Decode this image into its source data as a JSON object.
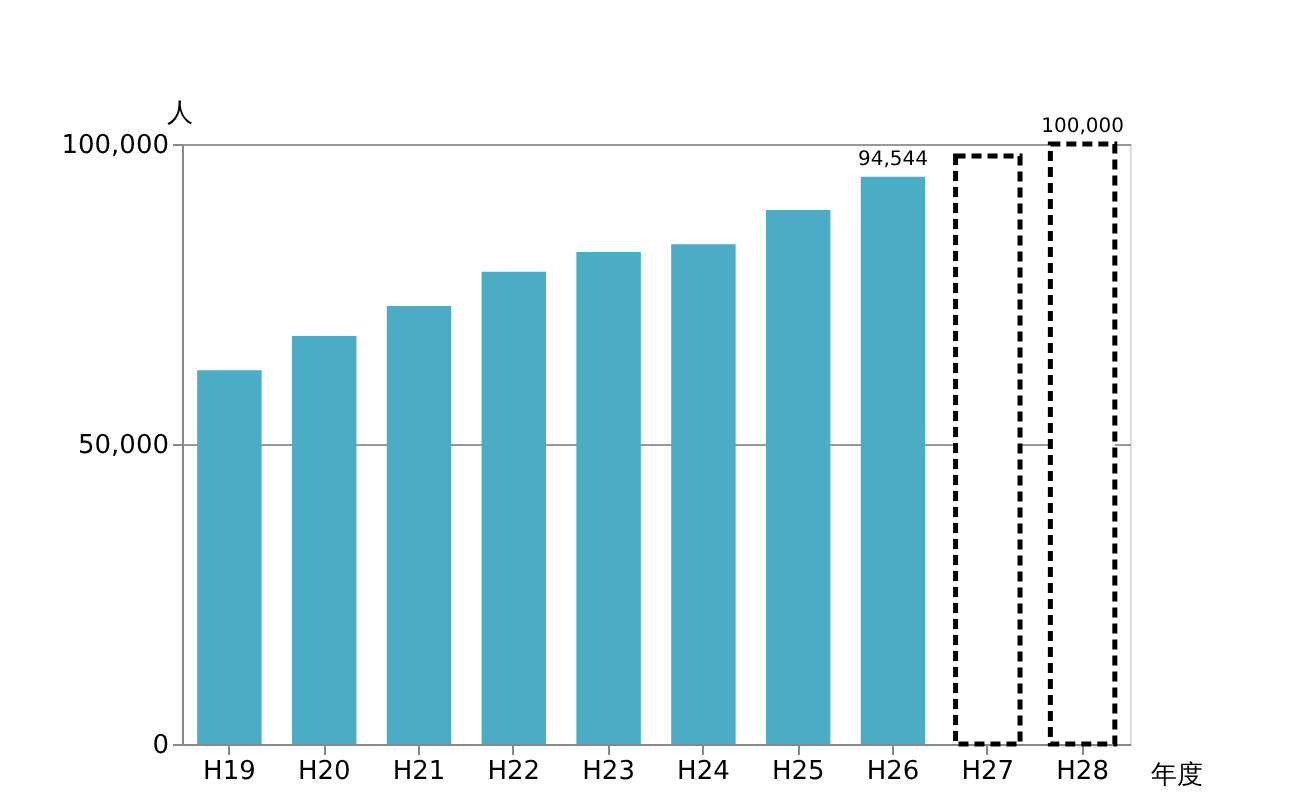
{
  "chart_data": {
    "type": "bar",
    "xlabel": "年度",
    "ylabel": "人",
    "categories": [
      "H19",
      "H20",
      "H21",
      "H22",
      "H23",
      "H24",
      "H25",
      "H26",
      "H27",
      "H28"
    ],
    "series": [
      {
        "color": "#4bacc6",
        "values": [
          62300,
          68000,
          73000,
          78700,
          82000,
          83300,
          89000,
          94544,
          null,
          null
        ],
        "value_labels": [
          null,
          null,
          null,
          null,
          null,
          null,
          null,
          "94,544",
          null,
          null
        ]
      },
      {
        "color": "#000000",
        "line_style": "dashed",
        "values": [
          null,
          null,
          null,
          null,
          null,
          null,
          null,
          null,
          98000,
          100000
        ],
        "value_labels": [
          null,
          null,
          null,
          null,
          null,
          null,
          null,
          null,
          null,
          "100,000"
        ]
      }
    ],
    "ylim": [
      0,
      100000
    ],
    "yticks": [
      0,
      {
        "value": 50000,
        "label": "50,000"
      },
      {
        "value": 100000,
        "label": "100,000"
      }
    ],
    "grid": "y"
  }
}
